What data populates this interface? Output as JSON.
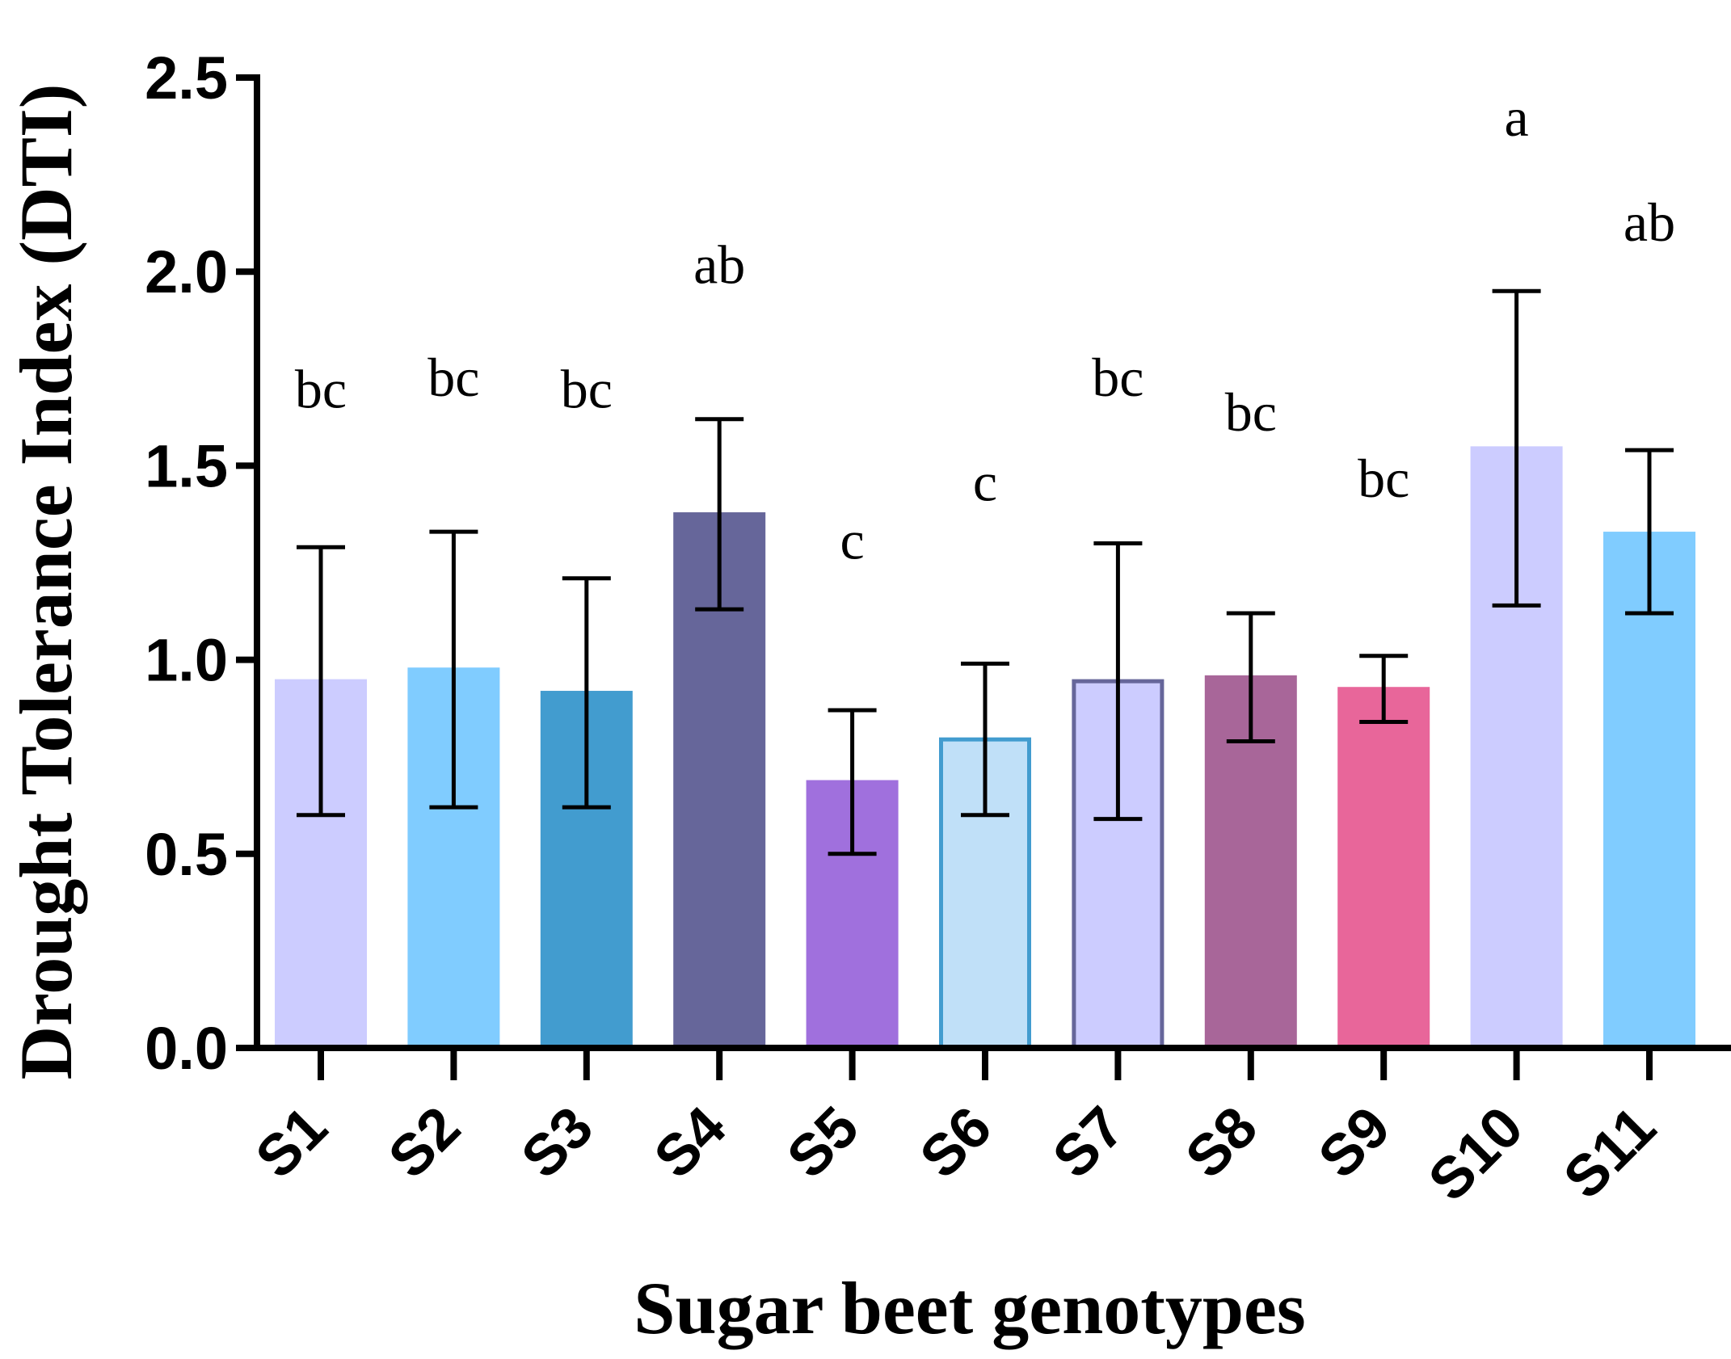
{
  "chart_data": {
    "type": "bar",
    "title": "",
    "xlabel": "Sugar beet genotypes",
    "ylabel": "Drought Tolerance Index (DTI)",
    "ylim": [
      0,
      2.5
    ],
    "yticks": [
      "0.0",
      "0.5",
      "1.0",
      "1.5",
      "2.0",
      "2.5"
    ],
    "yticks_values": [
      0,
      0.5,
      1.0,
      1.5,
      2.0,
      2.5
    ],
    "categories": [
      "S1",
      "S2",
      "S3",
      "S4",
      "S5",
      "S6",
      "S7",
      "S8",
      "S9",
      "S10",
      "S11"
    ],
    "values": [
      0.95,
      0.98,
      0.92,
      1.38,
      0.69,
      0.8,
      0.95,
      0.96,
      0.93,
      1.55,
      1.33
    ],
    "error_low": [
      0.6,
      0.62,
      0.62,
      1.13,
      0.5,
      0.6,
      0.59,
      0.79,
      0.84,
      1.14,
      1.12
    ],
    "error_high": [
      1.29,
      1.33,
      1.21,
      1.62,
      0.87,
      0.99,
      1.3,
      1.12,
      1.01,
      1.95,
      1.54
    ],
    "significance": [
      "bc",
      "bc",
      "bc",
      "ab",
      "c",
      "c",
      "bc",
      "bc",
      "bc",
      "a",
      "ab"
    ],
    "significance_y": [
      1.65,
      1.68,
      1.65,
      1.97,
      1.26,
      1.41,
      1.68,
      1.59,
      1.42,
      2.35,
      2.08
    ],
    "bar_fill_colors": [
      "#ccccff",
      "#80ccff",
      "#429ccf",
      "#66669a",
      "#a070dd",
      "#c0e0f8",
      "#ccccff",
      "#a86699",
      "#e8669a",
      "#ccccff",
      "#80ccff"
    ],
    "bar_stroke_colors": [
      "none",
      "none",
      "none",
      "none",
      "none",
      "#429ccf",
      "#66669a",
      "none",
      "none",
      "none",
      "none"
    ],
    "grid": false,
    "legend": "none"
  }
}
